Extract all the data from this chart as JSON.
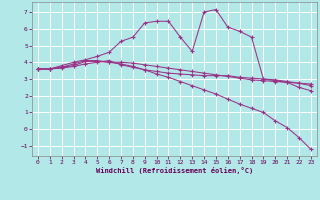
{
  "xlabel": "Windchill (Refroidissement éolien,°C)",
  "background_color": "#b3e8e8",
  "grid_color": "#ffffff",
  "line_color": "#993388",
  "x_ticks": [
    0,
    1,
    2,
    3,
    4,
    5,
    6,
    7,
    8,
    9,
    10,
    11,
    12,
    13,
    14,
    15,
    16,
    17,
    18,
    19,
    20,
    21,
    22,
    23
  ],
  "y_ticks": [
    -1,
    0,
    1,
    2,
    3,
    4,
    5,
    6,
    7
  ],
  "xlim": [
    -0.5,
    23.5
  ],
  "ylim": [
    -1.6,
    7.6
  ],
  "line1_y": [
    3.6,
    3.6,
    3.7,
    3.8,
    4.05,
    4.05,
    4.0,
    4.0,
    3.95,
    3.85,
    3.75,
    3.65,
    3.55,
    3.45,
    3.35,
    3.25,
    3.15,
    3.05,
    2.95,
    2.9,
    2.85,
    2.8,
    2.75,
    2.7
  ],
  "line2_y": [
    3.6,
    3.6,
    3.7,
    3.9,
    4.1,
    4.1,
    4.0,
    3.9,
    3.75,
    3.55,
    3.3,
    3.1,
    2.85,
    2.6,
    2.35,
    2.1,
    1.8,
    1.5,
    1.25,
    1.0,
    0.5,
    0.1,
    -0.5,
    -1.2
  ],
  "line3_y": [
    3.6,
    3.6,
    3.65,
    3.75,
    3.9,
    4.0,
    4.1,
    3.85,
    3.7,
    3.55,
    3.45,
    3.35,
    3.3,
    3.25,
    3.2,
    3.2,
    3.2,
    3.1,
    3.05,
    3.0,
    2.95,
    2.85,
    2.75,
    2.6
  ],
  "line4_y": [
    3.6,
    3.6,
    3.8,
    4.0,
    4.15,
    4.35,
    4.6,
    5.25,
    5.5,
    6.35,
    6.45,
    6.45,
    5.5,
    4.65,
    7.0,
    7.15,
    6.1,
    5.85,
    5.5,
    3.0,
    2.9,
    2.8,
    2.5,
    2.3
  ]
}
